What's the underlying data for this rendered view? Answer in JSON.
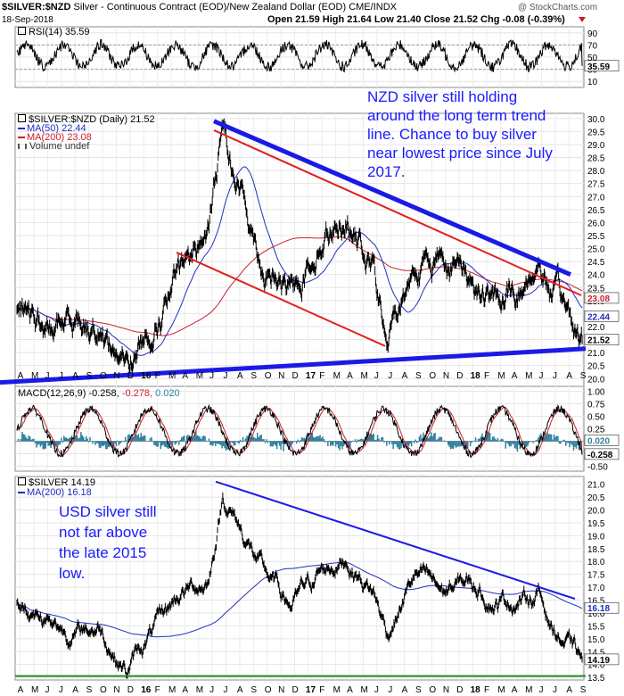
{
  "header": {
    "symbol": "$SILVER:$NZD",
    "description": "Silver - Continuous Contract (EOD)/New Zealand Dollar (EOD)",
    "exchange": "CME/INDX",
    "watermark": "@ StockCharts.com",
    "date": "18-Sep-2018",
    "ohlc": "Open 21.59  High 21.64  Low 21.40  Close 21.52  Chg -0.08 (-0.39%)"
  },
  "rsi": {
    "label": "RSI(14) 35.59",
    "ticks": [
      "90",
      "70",
      "50",
      "30",
      "10"
    ],
    "last_label": "35.59"
  },
  "nzd": {
    "legend_main": "$SILVER:$NZD (Daily) 21.52",
    "legend_ma50": "MA(50) 22.44",
    "legend_ma200": "MA(200) 23.08",
    "legend_volume": "Volume undef",
    "ticks": [
      "30.0",
      "29.5",
      "29.0",
      "28.5",
      "28.0",
      "27.5",
      "27.0",
      "26.5",
      "26.0",
      "25.5",
      "25.0",
      "24.5",
      "24.0",
      "23.5",
      "23.0",
      "22.5",
      "22.0",
      "21.5",
      "21.0",
      "20.5",
      "20.0"
    ],
    "last_labels": [
      "23.08",
      "22.44",
      "21.52"
    ],
    "annotation": [
      "NZD silver still holding",
      "around the long term trend",
      "line. Chance to buy silver",
      "near lowest price since July",
      "2017."
    ]
  },
  "macd": {
    "label_main": "MACD(12,26,9) -0.258,",
    "label_signal": "-0.278,",
    "label_hist": "0.020",
    "ticks": [
      "1.00",
      "0.75",
      "0.50",
      "0.25",
      "0.00",
      "-0.25",
      "-0.50"
    ],
    "last_labels": [
      "0.020",
      "-0.258"
    ]
  },
  "usd": {
    "legend_main": "$SILVER 14.19",
    "legend_ma200": "MA(200) 16.18",
    "ticks": [
      "21.0",
      "20.5",
      "20.0",
      "19.5",
      "19.0",
      "18.5",
      "18.0",
      "17.5",
      "17.0",
      "16.5",
      "16.0",
      "15.5",
      "15.0",
      "14.5",
      "14.0",
      "13.5"
    ],
    "last_labels": [
      "16.18",
      "14.19"
    ],
    "annotation": [
      "USD silver still",
      "not far above",
      "the late 2015",
      "low."
    ]
  },
  "xaxis": {
    "months": [
      "A",
      "M",
      "J",
      "J",
      "A",
      "S",
      "O",
      "N",
      "D",
      "16",
      "F",
      "M",
      "A",
      "M",
      "J",
      "J",
      "A",
      "S",
      "O",
      "N",
      "D",
      "17",
      "F",
      "M",
      "A",
      "M",
      "J",
      "J",
      "A",
      "S",
      "O",
      "N",
      "D",
      "18",
      "F",
      "M",
      "A",
      "M",
      "J",
      "J",
      "A",
      "S"
    ]
  },
  "colors": {
    "price": "#000000",
    "ma50": "#1f2fbf",
    "ma200": "#cc1f2a",
    "trend_blue": "#1a1ae6",
    "trend_red": "#e02020",
    "macd_hist": "#2f7f9f",
    "annotation": "#1a1aff",
    "usd_support": "#1f8f1f"
  },
  "chart_data": [
    {
      "type": "line",
      "title": "$SILVER:$NZD (Daily) 21.52",
      "x": [
        "2015-04",
        "2015-06",
        "2015-08",
        "2015-10",
        "2015-12",
        "2016-02",
        "2016-04",
        "2016-06",
        "2016-07",
        "2016-08",
        "2016-10",
        "2016-12",
        "2017-02",
        "2017-04",
        "2017-06",
        "2017-07",
        "2017-09",
        "2017-11",
        "2018-01",
        "2018-03",
        "2018-05",
        "2018-06",
        "2018-07",
        "2018-09"
      ],
      "series": [
        {
          "name": "$SILVER:$NZD",
          "values": [
            22.8,
            21.5,
            22.4,
            22.3,
            20.5,
            22.3,
            24.0,
            25.8,
            29.6,
            28.0,
            24.5,
            23.2,
            25.5,
            26.7,
            24.0,
            21.2,
            24.5,
            24.8,
            24.0,
            22.7,
            23.4,
            24.6,
            23.3,
            21.5
          ]
        },
        {
          "name": "MA(50)",
          "values": [
            22.5,
            22.0,
            22.0,
            22.4,
            21.3,
            21.8,
            23.5,
            24.6,
            27.5,
            28.0,
            25.5,
            23.8,
            24.8,
            25.6,
            24.5,
            22.6,
            23.8,
            24.3,
            24.0,
            23.0,
            23.2,
            24.0,
            23.6,
            22.4
          ]
        },
        {
          "name": "MA(200)",
          "values": [
            22.8,
            22.5,
            22.3,
            22.2,
            21.8,
            21.9,
            22.6,
            23.4,
            24.3,
            25.2,
            25.5,
            24.9,
            24.6,
            24.8,
            24.7,
            24.1,
            23.9,
            24.1,
            24.1,
            23.9,
            23.8,
            23.7,
            23.5,
            23.1
          ]
        }
      ],
      "ylim": [
        19.7,
        30.2
      ],
      "annotation": "NZD silver still holding around the long term trend line. Chance to buy silver near lowest price since July 2017."
    },
    {
      "type": "line",
      "title": "$SILVER 14.19",
      "x": [
        "2015-04",
        "2015-06",
        "2015-08",
        "2015-10",
        "2015-12",
        "2016-02",
        "2016-04",
        "2016-06",
        "2016-07",
        "2016-08",
        "2016-10",
        "2016-12",
        "2017-02",
        "2017-04",
        "2017-06",
        "2017-07",
        "2017-09",
        "2017-11",
        "2018-01",
        "2018-03",
        "2018-05",
        "2018-06",
        "2018-07",
        "2018-09"
      ],
      "series": [
        {
          "name": "$SILVER",
          "values": [
            16.3,
            16.0,
            15.2,
            15.5,
            13.8,
            15.3,
            16.8,
            17.3,
            20.6,
            19.6,
            17.5,
            16.3,
            17.5,
            18.2,
            16.8,
            15.2,
            17.5,
            16.8,
            17.2,
            16.5,
            16.6,
            16.8,
            15.5,
            14.2
          ]
        },
        {
          "name": "MA(200)",
          "values": [
            16.7,
            16.0,
            15.6,
            15.3,
            15.0,
            14.9,
            15.0,
            15.5,
            16.3,
            17.0,
            17.6,
            17.8,
            17.7,
            17.4,
            17.2,
            17.0,
            17.0,
            17.0,
            16.9,
            16.8,
            16.8,
            16.7,
            16.5,
            16.2
          ]
        }
      ],
      "ylim": [
        13.4,
        21.3
      ],
      "annotation": "USD silver still not far above the late 2015 low."
    },
    {
      "type": "line",
      "title": "RSI(14) 35.59",
      "series": [
        {
          "name": "RSI(14)",
          "values": [
            35.59
          ]
        }
      ],
      "ylim": [
        10,
        90
      ]
    },
    {
      "type": "line",
      "title": "MACD(12,26,9) -0.258, -0.278, 0.020",
      "series": [
        {
          "name": "MACD",
          "values": [
            -0.258
          ]
        },
        {
          "name": "Signal",
          "values": [
            -0.278
          ]
        },
        {
          "name": "Histogram",
          "values": [
            0.02
          ]
        }
      ],
      "ylim": [
        -0.6,
        1.1
      ]
    }
  ]
}
